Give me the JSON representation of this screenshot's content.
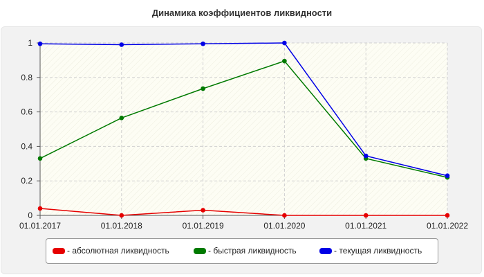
{
  "chart_data": {
    "type": "line",
    "title": "Динамика коэффициентов ликвидности",
    "xlabel": "",
    "ylabel": "",
    "categories": [
      "01.01.2017",
      "01.01.2018",
      "01.01.2019",
      "01.01.2020",
      "01.01.2021",
      "01.01.2022"
    ],
    "ylim": [
      0,
      1
    ],
    "yticks": [
      0,
      0.2,
      0.4,
      0.6,
      0.8,
      1
    ],
    "ytick_labels": [
      "0",
      "0.2",
      "0.4",
      "0.6",
      "0.8",
      "1"
    ],
    "grid": true,
    "legend_position": "bottom",
    "series": [
      {
        "name": "- абсолютная ликвидность",
        "color": "#e60000",
        "values": [
          0.04,
          0.0,
          0.03,
          0.0,
          0.0,
          0.0
        ]
      },
      {
        "name": "- быстрая ликвидность",
        "color": "#007a00",
        "values": [
          0.33,
          0.565,
          0.735,
          0.895,
          0.33,
          0.22
        ]
      },
      {
        "name": "- текущая ликвидность",
        "color": "#0000e6",
        "values": [
          0.995,
          0.99,
          0.995,
          1.0,
          0.345,
          0.23
        ]
      }
    ]
  }
}
